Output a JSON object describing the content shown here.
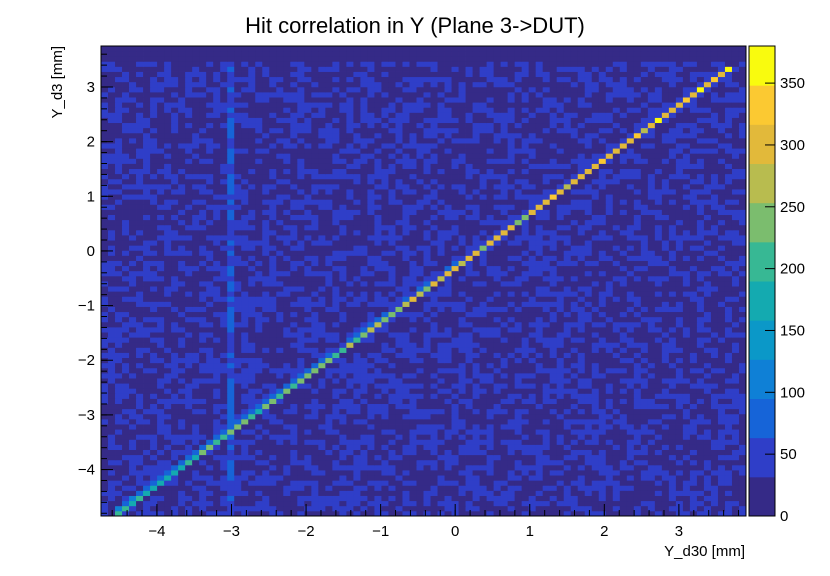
{
  "chart_data": {
    "type": "heatmap",
    "title": "Hit correlation in Y (Plane 3->DUT)",
    "xlabel": "Y_d30 [mm]",
    "ylabel": "Y_d3 [mm]",
    "xlim": [
      -4.75,
      3.9
    ],
    "ylim": [
      -4.85,
      3.75
    ],
    "zlim": [
      0,
      380
    ],
    "x_ticks": [
      -4,
      -3,
      -2,
      -1,
      0,
      1,
      2,
      3
    ],
    "x_tick_labels": [
      "−4",
      "−3",
      "−2",
      "−1",
      "0",
      "1",
      "2",
      "3"
    ],
    "y_ticks": [
      -4,
      -3,
      -2,
      -1,
      0,
      1,
      2,
      3
    ],
    "y_tick_labels": [
      "−4",
      "−3",
      "−2",
      "−1",
      "0",
      "1",
      "2",
      "3"
    ],
    "z_ticks": [
      0,
      50,
      100,
      150,
      200,
      250,
      300,
      350
    ],
    "z_tick_labels": [
      "0",
      "50",
      "100",
      "150",
      "200",
      "250",
      "300",
      "350"
    ],
    "colormap": [
      "#352a87",
      "#2f3ec8",
      "#1664d8",
      "#0f80d6",
      "#0b98c8",
      "#14aab0",
      "#37b894",
      "#7bbd6e",
      "#b8bc4f",
      "#e2b93a",
      "#fbc932",
      "#f9fb0e"
    ],
    "correlation_line": {
      "slope": 0.99,
      "intercept": -0.3,
      "peak_count": 330,
      "x_start": -4.6,
      "x_end": 3.75
    },
    "background_count": 30,
    "noisy_column_x": -3.0,
    "top_overflow_row_y": [
      3.45,
      3.75
    ]
  }
}
